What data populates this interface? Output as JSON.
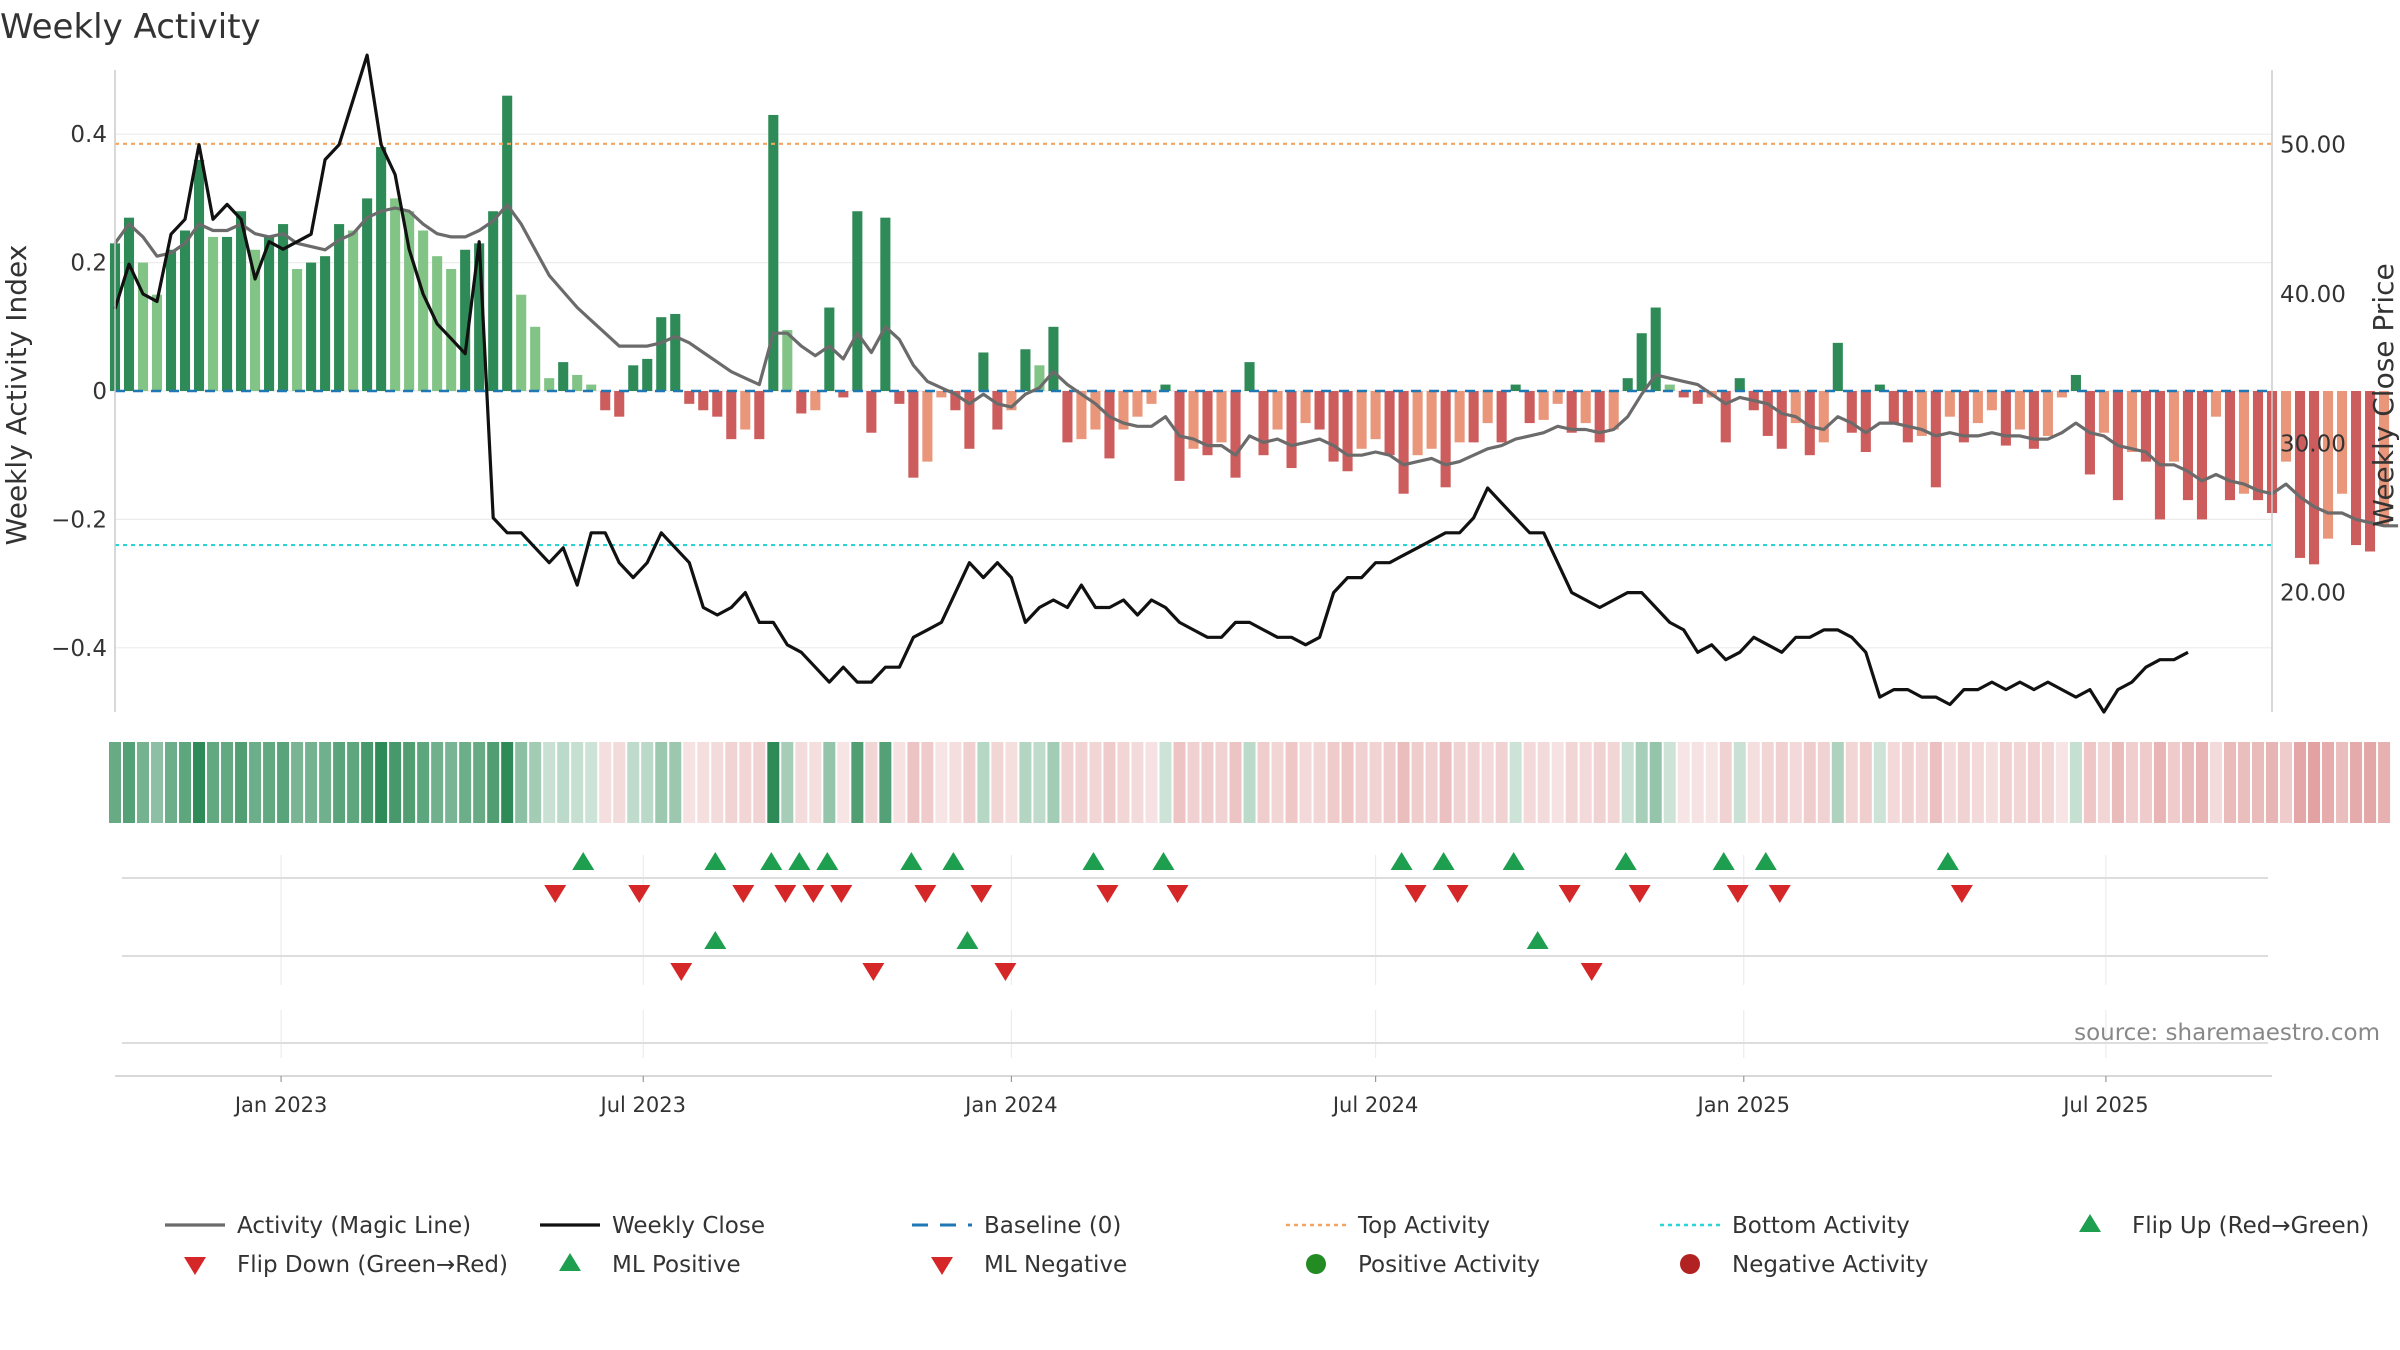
{
  "chart_data": {
    "type": "bar",
    "title": "Weekly Activity",
    "source": "source: sharemaestro.com",
    "x_range": [
      "2022-10-10",
      "2025-09-22"
    ],
    "left_axis": {
      "label": "Weekly Activity Index",
      "range": [
        -0.5,
        0.5
      ],
      "ticks": [
        0.4,
        0.2,
        0,
        -0.2,
        -0.4
      ],
      "tick_labels": [
        "0.4",
        "0.2",
        "0",
        "−0.2",
        "−0.4"
      ]
    },
    "right_axis": {
      "label": "Weekly Close Price",
      "range": [
        12,
        55
      ],
      "ticks": [
        50,
        40,
        30,
        20
      ],
      "tick_labels": [
        "50.00",
        "40.00",
        "30.00",
        "20.00"
      ]
    },
    "x_ticks": [
      {
        "date": "2023-01-01",
        "label": "Jan 2023"
      },
      {
        "date": "2023-07-01",
        "label": "Jul 2023"
      },
      {
        "date": "2024-01-01",
        "label": "Jan 2024"
      },
      {
        "date": "2024-07-01",
        "label": "Jul 2024"
      },
      {
        "date": "2025-01-01",
        "label": "Jan 2025"
      },
      {
        "date": "2025-07-01",
        "label": "Jul 2025"
      }
    ],
    "reference_lines": {
      "baseline": 0,
      "top_activity": 0.385,
      "bottom_activity": -0.24
    },
    "colors": {
      "strong_pos": "#2e8b57",
      "weak_pos": "#82c386",
      "strong_neg": "#cd5c5c",
      "weak_neg": "#e9967a",
      "magic_line": "#6b6b6b",
      "close_line": "#111111",
      "baseline": "#1f77b4",
      "top": "#f4a460",
      "bottom": "#2bd4d4",
      "flip_up": "#1e9e4f",
      "flip_down": "#d62728",
      "pos_dot": "#228b22",
      "neg_dot": "#b22222"
    },
    "series": [
      {
        "name": "Weekly Activity Index",
        "start": "2022-10-10",
        "interval_days": 7,
        "values": [
          0.23,
          0.27,
          0.2,
          0.15,
          0.22,
          0.25,
          0.36,
          0.24,
          0.24,
          0.28,
          0.22,
          0.24,
          0.26,
          0.19,
          0.2,
          0.21,
          0.26,
          0.25,
          0.3,
          0.38,
          0.3,
          0.28,
          0.25,
          0.21,
          0.19,
          0.22,
          0.23,
          0.28,
          0.46,
          0.15,
          0.1,
          0.02,
          0.045,
          0.025,
          0.01,
          -0.03,
          -0.04,
          0.04,
          0.05,
          0.115,
          0.12,
          -0.02,
          -0.03,
          -0.04,
          -0.075,
          -0.06,
          -0.075,
          0.43,
          0.095,
          -0.035,
          -0.03,
          0.13,
          -0.01,
          0.28,
          -0.065,
          0.27,
          -0.02,
          -0.135,
          -0.11,
          -0.01,
          -0.03,
          -0.09,
          0.06,
          -0.06,
          -0.03,
          0.065,
          0.04,
          0.1,
          -0.08,
          -0.075,
          -0.06,
          -0.105,
          -0.06,
          -0.04,
          -0.02,
          0.01,
          -0.14,
          -0.09,
          -0.1,
          -0.08,
          -0.135,
          0.045,
          -0.1,
          -0.06,
          -0.12,
          -0.05,
          -0.06,
          -0.11,
          -0.125,
          -0.09,
          -0.075,
          -0.1,
          -0.16,
          -0.1,
          -0.09,
          -0.15,
          -0.08,
          -0.08,
          -0.05,
          -0.08,
          0.01,
          -0.05,
          -0.045,
          -0.02,
          -0.065,
          -0.05,
          -0.08,
          -0.06,
          0.02,
          0.09,
          0.13,
          0.01,
          -0.01,
          -0.02,
          -0.01,
          -0.08,
          0.02,
          -0.03,
          -0.07,
          -0.09,
          -0.05,
          -0.1,
          -0.08,
          0.075,
          -0.065,
          -0.095,
          0.01,
          -0.05,
          -0.08,
          -0.07,
          -0.15,
          -0.04,
          -0.08,
          -0.05,
          -0.03,
          -0.085,
          -0.06,
          -0.09,
          -0.07,
          -0.01,
          0.025,
          -0.13,
          -0.065,
          -0.17,
          -0.095,
          -0.11,
          -0.2,
          -0.11,
          -0.17,
          -0.2,
          -0.04,
          -0.17,
          -0.16,
          -0.17,
          -0.19,
          -0.11,
          -0.26,
          -0.27,
          -0.23,
          -0.16,
          -0.24,
          -0.25,
          -0.21
        ]
      },
      {
        "name": "Activity (Magic Line)",
        "start": "2022-10-10",
        "interval_days": 7,
        "values": [
          0.23,
          0.26,
          0.24,
          0.21,
          0.215,
          0.23,
          0.26,
          0.25,
          0.25,
          0.26,
          0.245,
          0.24,
          0.245,
          0.23,
          0.225,
          0.22,
          0.235,
          0.245,
          0.27,
          0.28,
          0.285,
          0.28,
          0.26,
          0.245,
          0.24,
          0.24,
          0.25,
          0.265,
          0.29,
          0.26,
          0.22,
          0.18,
          0.155,
          0.13,
          0.11,
          0.09,
          0.07,
          0.07,
          0.07,
          0.075,
          0.085,
          0.075,
          0.06,
          0.045,
          0.03,
          0.02,
          0.01,
          0.09,
          0.09,
          0.07,
          0.055,
          0.07,
          0.05,
          0.09,
          0.06,
          0.1,
          0.08,
          0.04,
          0.015,
          0.005,
          -0.005,
          -0.02,
          -0.005,
          -0.02,
          -0.025,
          -0.005,
          0.005,
          0.03,
          0.01,
          -0.005,
          -0.02,
          -0.04,
          -0.05,
          -0.055,
          -0.055,
          -0.04,
          -0.07,
          -0.075,
          -0.085,
          -0.085,
          -0.1,
          -0.07,
          -0.08,
          -0.075,
          -0.085,
          -0.08,
          -0.075,
          -0.085,
          -0.1,
          -0.1,
          -0.095,
          -0.1,
          -0.115,
          -0.11,
          -0.105,
          -0.115,
          -0.11,
          -0.1,
          -0.09,
          -0.085,
          -0.075,
          -0.07,
          -0.065,
          -0.055,
          -0.06,
          -0.06,
          -0.065,
          -0.06,
          -0.04,
          -0.005,
          0.025,
          0.02,
          0.015,
          0.01,
          -0.005,
          -0.02,
          -0.01,
          -0.015,
          -0.02,
          -0.035,
          -0.04,
          -0.055,
          -0.06,
          -0.04,
          -0.05,
          -0.065,
          -0.05,
          -0.05,
          -0.055,
          -0.06,
          -0.07,
          -0.065,
          -0.07,
          -0.07,
          -0.065,
          -0.07,
          -0.07,
          -0.075,
          -0.075,
          -0.065,
          -0.05,
          -0.065,
          -0.07,
          -0.085,
          -0.09,
          -0.095,
          -0.115,
          -0.115,
          -0.125,
          -0.14,
          -0.13,
          -0.14,
          -0.145,
          -0.155,
          -0.16,
          -0.145,
          -0.165,
          -0.18,
          -0.19,
          -0.19,
          -0.2,
          -0.205,
          -0.21,
          -0.21
        ]
      },
      {
        "name": "Weekly Close",
        "start": "2022-10-10",
        "interval_days": 7,
        "values": [
          39,
          42,
          40,
          39.5,
          44,
          45,
          50,
          45,
          46,
          45,
          41,
          43.5,
          43,
          43.5,
          44,
          49,
          50,
          53,
          56,
          50,
          48,
          43,
          40,
          38,
          37,
          36,
          43.5,
          25,
          24,
          24,
          23,
          22,
          23,
          20.5,
          24,
          24,
          22,
          21,
          22,
          24,
          23,
          22,
          19,
          18.5,
          19,
          20,
          18,
          18,
          16.5,
          16,
          15,
          14,
          15,
          14,
          14,
          15,
          15,
          17,
          17.5,
          18,
          20,
          22,
          21,
          22,
          21,
          18,
          19,
          19.5,
          19,
          20.5,
          19,
          19,
          19.5,
          18.5,
          19.5,
          19,
          18,
          17.5,
          17,
          17,
          18,
          18,
          17.5,
          17,
          17,
          16.5,
          17,
          20,
          21,
          21,
          22,
          22,
          22.5,
          23,
          23.5,
          24,
          24,
          25,
          27,
          26,
          25,
          24,
          24,
          22,
          20,
          19.5,
          19,
          19.5,
          20,
          20,
          19,
          18,
          17.5,
          16,
          16.5,
          15.5,
          16,
          17,
          16.5,
          16,
          17,
          17,
          17.5,
          17.5,
          17,
          16,
          13,
          13.5,
          13.5,
          13,
          13,
          12.5,
          13.5,
          13.5,
          14,
          13.5,
          14,
          13.5,
          14,
          13.5,
          13,
          13.5,
          12,
          13.5,
          14,
          15,
          15.5,
          15.5,
          16
        ]
      }
    ],
    "signal_rows": [
      {
        "name": "Flip markers",
        "up_dates": [
          "2023-06-01",
          "2023-08-06",
          "2023-09-03",
          "2023-09-17",
          "2023-10-01",
          "2023-11-12",
          "2023-12-03",
          "2024-02-11",
          "2024-03-17",
          "2024-07-14",
          "2024-08-04",
          "2024-09-08",
          "2024-11-03",
          "2024-12-22",
          "2025-01-12",
          "2025-04-13"
        ],
        "down_dates": [
          "2023-05-18",
          "2023-06-29",
          "2023-08-20",
          "2023-09-10",
          "2023-09-24",
          "2023-10-08",
          "2023-11-19",
          "2023-12-17",
          "2024-02-18",
          "2024-03-24",
          "2024-07-21",
          "2024-08-11",
          "2024-10-06",
          "2024-11-10",
          "2024-12-29",
          "2025-01-19",
          "2025-04-20"
        ]
      },
      {
        "name": "ML markers",
        "up_dates": [
          "2023-08-06",
          "2023-12-10",
          "2024-09-20"
        ],
        "down_dates": [
          "2023-07-20",
          "2023-10-24",
          "2023-12-29",
          "2024-10-17"
        ]
      }
    ],
    "legend": [
      {
        "label": "Activity (Magic Line)",
        "key": "magic"
      },
      {
        "label": "Weekly Close",
        "key": "close"
      },
      {
        "label": "Baseline (0)",
        "key": "baseline"
      },
      {
        "label": "Top Activity",
        "key": "top"
      },
      {
        "label": "Bottom Activity",
        "key": "bottom"
      },
      {
        "label": "Flip Up (Red→Green)",
        "key": "flipup"
      },
      {
        "label": "Flip Down (Green→Red)",
        "key": "flipdown"
      },
      {
        "label": "ML Positive",
        "key": "mlpos"
      },
      {
        "label": "ML Negative",
        "key": "mlneg"
      },
      {
        "label": "Positive Activity",
        "key": "posdot"
      },
      {
        "label": "Negative Activity",
        "key": "negdot"
      }
    ]
  }
}
